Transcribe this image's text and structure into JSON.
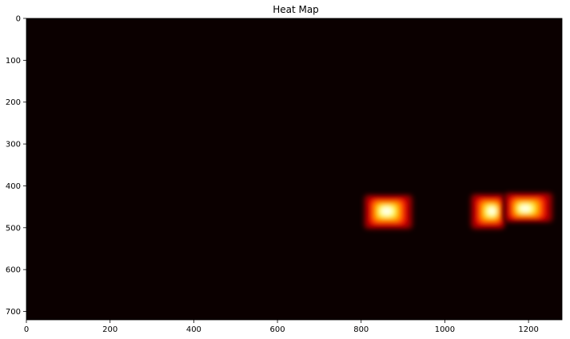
{
  "chart_data": {
    "type": "heatmap",
    "title": "Heat Map",
    "xlabel": "",
    "ylabel": "",
    "xlim": [
      0,
      1280
    ],
    "ylim": [
      720,
      0
    ],
    "y_axis_inverted": true,
    "x_ticks": [
      "0",
      "200",
      "400",
      "600",
      "800",
      "1000",
      "1200"
    ],
    "x_tick_values": [
      0,
      200,
      400,
      600,
      800,
      1000,
      1200
    ],
    "y_ticks": [
      "0",
      "100",
      "200",
      "300",
      "400",
      "500",
      "600",
      "700"
    ],
    "y_tick_values": [
      0,
      100,
      200,
      300,
      400,
      500,
      600,
      700
    ],
    "colormap": "hot",
    "background_color": "#0b0000",
    "grid": false,
    "legend": "none",
    "hot_regions": [
      {
        "name": "blob-1",
        "x_range": [
          805,
          925
        ],
        "y_range": [
          420,
          505
        ],
        "peak": [
          860,
          460
        ]
      },
      {
        "name": "blob-2",
        "x_range": [
          1060,
          1145
        ],
        "y_range": [
          418,
          505
        ],
        "peak": [
          1115,
          460
        ]
      },
      {
        "name": "blob-3",
        "x_range": [
          1140,
          1260
        ],
        "y_range": [
          415,
          488
        ],
        "peak": [
          1190,
          455
        ]
      }
    ]
  }
}
